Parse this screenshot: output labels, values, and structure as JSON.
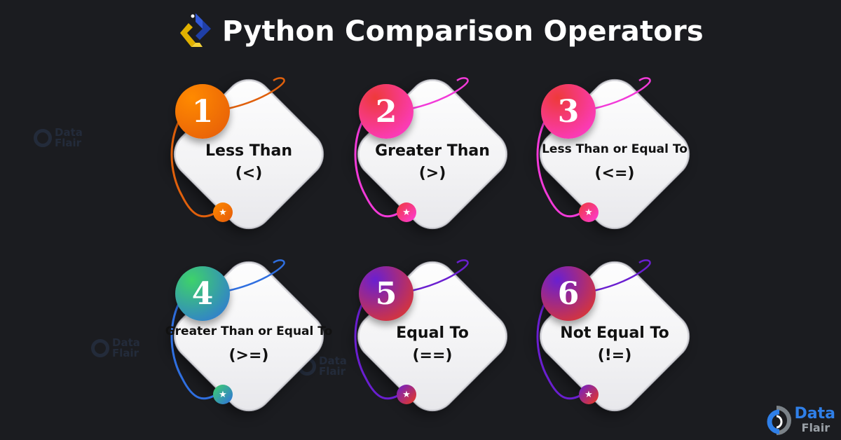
{
  "title": "Python Comparison Operators",
  "brand": {
    "line1": "Data",
    "line2": "Flair"
  },
  "watermark": {
    "line1": "Data",
    "line2": "Flair"
  },
  "cards": [
    {
      "number": "1",
      "label": "Less Than",
      "operator": "(<)",
      "color_from": "#ff8a00",
      "color_to": "#e45a0a",
      "wire": "#e0600c"
    },
    {
      "number": "2",
      "label": "Greater Than",
      "operator": "(>)",
      "color_from": "#ee3a3a",
      "color_to": "#ff3bdc",
      "wire": "#f23ad8"
    },
    {
      "number": "3",
      "label": "Less Than or Equal To",
      "operator": "(<=)",
      "color_from": "#ee3a3a",
      "color_to": "#ff3bdc",
      "wire": "#f23ad8"
    },
    {
      "number": "4",
      "label": "Greater Than or Equal To",
      "operator": "(>=)",
      "color_from": "#3ed26a",
      "color_to": "#2f6fe0",
      "wire": "#2f6fe0"
    },
    {
      "number": "5",
      "label": "Equal To",
      "operator": "(==)",
      "color_from": "#6a1fd0",
      "color_to": "#ee3a1a",
      "wire": "#6a1fd0"
    },
    {
      "number": "6",
      "label": "Not Equal To",
      "operator": "(!=)",
      "color_from": "#6a1fd0",
      "color_to": "#ee3a1a",
      "wire": "#6a1fd0"
    }
  ]
}
